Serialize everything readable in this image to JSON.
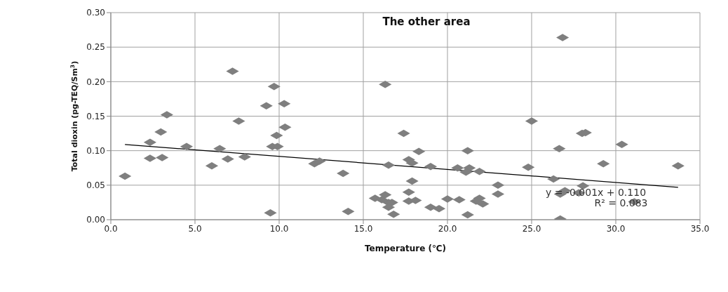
{
  "chart_data": {
    "type": "scatter",
    "title": "The other area",
    "xlabel": "Temperature (℃)",
    "ylabel": "Total dioxin (pg-TEQ/Sm$^{3}$)",
    "xlim": [
      0,
      35
    ],
    "xticks": [
      {
        "value": 0,
        "label": "0.0"
      },
      {
        "value": 5,
        "label": "5.0"
      },
      {
        "value": 10,
        "label": "10.0"
      },
      {
        "value": 15,
        "label": "15.0"
      },
      {
        "value": 20,
        "label": "20.0"
      },
      {
        "value": 25,
        "label": "25.0"
      },
      {
        "value": 30,
        "label": "30.0"
      },
      {
        "value": 35,
        "label": "35.0"
      }
    ],
    "ylim": [
      0,
      0.3
    ],
    "yticks": [
      {
        "value": 0,
        "label": "0.00"
      },
      {
        "value": 0.05,
        "label": "0.05"
      },
      {
        "value": 0.1,
        "label": "0.10"
      },
      {
        "value": 0.15,
        "label": "0.15"
      },
      {
        "value": 0.2,
        "label": "0.20"
      },
      {
        "value": 0.25,
        "label": "0.25"
      },
      {
        "value": 0.3,
        "label": "0.30"
      }
    ],
    "grid": true,
    "series": [
      {
        "marker": "diamond",
        "color": "#7f7f7f",
        "x": [
          0.84,
          2.33,
          2.33,
          2.97,
          3.05,
          3.33,
          4.5,
          6.0,
          6.47,
          6.95,
          7.23,
          7.6,
          7.95,
          9.24,
          9.48,
          9.6,
          9.9,
          9.7,
          9.85,
          10.3,
          10.35,
          12.1,
          12.4,
          13.8,
          14.1,
          16.3,
          17.4,
          18.3,
          21.2,
          17.7,
          16.5,
          17.9,
          19.0,
          20.6,
          21.3,
          21.1,
          21.9,
          17.9,
          23.0,
          17.7,
          17.7,
          18.1,
          23.0,
          16.3,
          15.7,
          16.1,
          16.5,
          16.7,
          16.5,
          16.8,
          19.0,
          19.5,
          20.0,
          20.7,
          21.2,
          21.9,
          21.7,
          22.1,
          26.84,
          25.0,
          28.0,
          28.2,
          30.36,
          26.64,
          29.26,
          33.7,
          24.8,
          26.3,
          28.05,
          27.8,
          26.98,
          26.7,
          31.1,
          26.7
        ],
        "values": [
          0.063,
          0.112,
          0.089,
          0.127,
          0.09,
          0.152,
          0.106,
          0.078,
          0.103,
          0.088,
          0.215,
          0.143,
          0.091,
          0.165,
          0.01,
          0.106,
          0.106,
          0.193,
          0.122,
          0.168,
          0.134,
          0.081,
          0.085,
          0.067,
          0.012,
          0.196,
          0.125,
          0.099,
          0.1,
          0.087,
          0.079,
          0.082,
          0.077,
          0.075,
          0.075,
          0.069,
          0.07,
          0.056,
          0.05,
          0.04,
          0.027,
          0.028,
          0.037,
          0.036,
          0.031,
          0.029,
          0.025,
          0.025,
          0.018,
          0.008,
          0.018,
          0.016,
          0.03,
          0.029,
          0.007,
          0.031,
          0.027,
          0.023,
          0.264,
          0.143,
          0.125,
          0.126,
          0.109,
          0.103,
          0.081,
          0.078,
          0.076,
          0.059,
          0.049,
          0.039,
          0.042,
          0.037,
          0.026,
          0.001
        ]
      },
      {
        "type": "line",
        "color": "#000000",
        "x": [
          0.84,
          33.7
        ],
        "values": [
          0.109,
          0.047
        ]
      }
    ],
    "annotations": [
      "y = -0.001x + 0.110",
      "R² = 0.083"
    ]
  }
}
